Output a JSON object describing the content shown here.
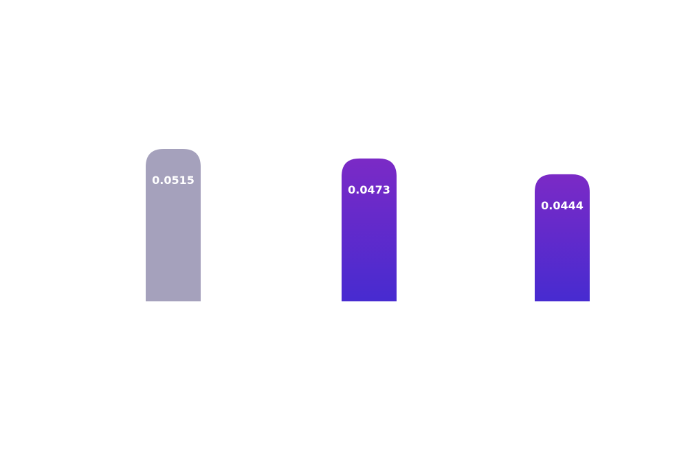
{
  "chart_data": {
    "type": "bar",
    "categories": [
      "",
      "",
      ""
    ],
    "values": [
      0.0515,
      0.0473,
      0.0444
    ],
    "data_labels": [
      "0.0515",
      "0.0473",
      "0.0444"
    ],
    "colors": {
      "highlight_bar": "#a5a1bc",
      "gradient_top": "#7b2ac6",
      "gradient_bottom": "#472bd0",
      "label": "#ffffff"
    },
    "grid": false,
    "legend": "none",
    "title": "",
    "xlabel": "",
    "ylabel": ""
  }
}
